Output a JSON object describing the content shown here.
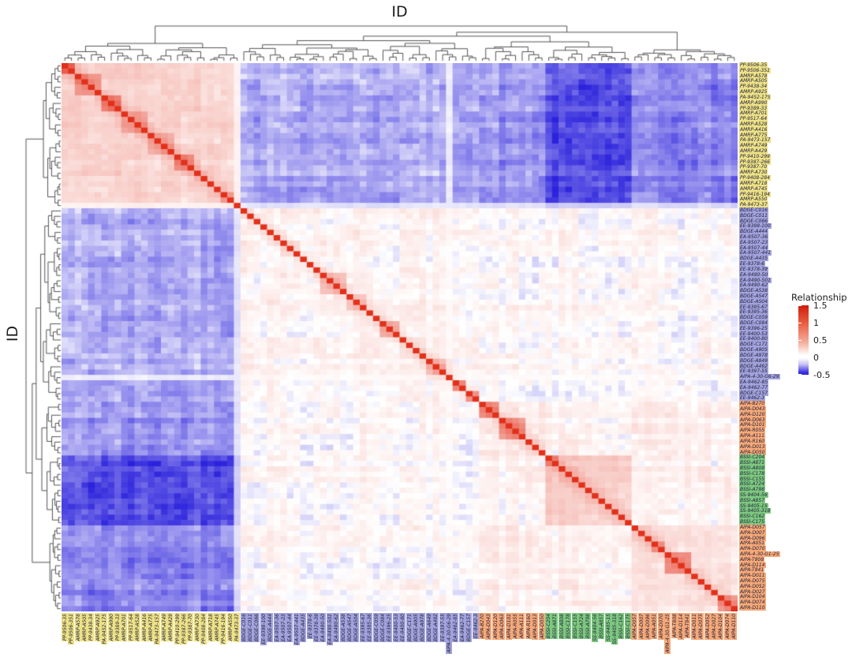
{
  "titles": {
    "top": "ID",
    "left": "ID"
  },
  "legend": {
    "title": "Relationship",
    "ticks": [
      "1.5",
      "1",
      "0.5",
      "0",
      "-0.5"
    ],
    "tick_values": [
      1.5,
      1,
      0.5,
      0,
      -0.5
    ],
    "vmax": 1.5,
    "vmin": -0.5
  },
  "palette": {
    "pos_max": "#e2301a",
    "mid": "#ffffff",
    "neg_max": "#2c22dc"
  },
  "chart_data": {
    "type": "heatmap",
    "symmetric": true,
    "value_label": "Relationship",
    "diagonal_value": 1.5,
    "groups": [
      {
        "name": "amrp-pp-cluster",
        "color": "#ede186",
        "labels": [
          "PP-9506-35",
          "PP-9506-351",
          "AMRP-A578",
          "AMRP-A505",
          "PP-9438-34",
          "AMRP-A925",
          "PA-9452-175",
          "AMRP-A990",
          "PP-9389-33",
          "AMRP-A701",
          "PP-9517-64",
          "AMRP-A528",
          "AMRP-A416",
          "AMRP-A775",
          "PA-9473-157",
          "AMRP-A749",
          "AMRP-A429",
          "PP-9410-299",
          "PP-9387-266",
          "PP-9387-70",
          "AMRP-A730",
          "PP-9408-284",
          "AMRP-A718",
          "AMRP-A745",
          "PP-9416-194",
          "AMRP-A550",
          "PA-9473-37"
        ]
      },
      {
        "name": "bdge-ea-ee-cluster",
        "color": "#a2a2dc",
        "labels": [
          "BDGE-C016",
          "BDGE-C011",
          "BDGE-C066",
          "EE-9398-100",
          "BDGE-A444",
          "EA-9507-36",
          "EA-9507-23",
          "EA-9507-44",
          "EA-9507-441",
          "BDGE-A435",
          "EE-9378-6",
          "EE-9378-39",
          "EA-9490-50",
          "EA-9490-501",
          "EA-9490-62",
          "BDGE-A538",
          "BDGE-A547",
          "BDGE-A504",
          "EE-9395-67",
          "EE-9395-36",
          "BDGE-C059",
          "BDGE-C084",
          "EE-9396-25",
          "EE-9400-53",
          "EE-9400-80",
          "BDGE-C171",
          "BDGE-A905",
          "BDGE-A978",
          "BDGE-A849",
          "BDGE-A492",
          "EE-9397-55",
          "AIPA-4-30-G6-29",
          "EA-9462-85",
          "EA-9462-77",
          "BDGE-C157",
          "EE-9462-3"
        ]
      },
      {
        "name": "aipa-cluster-1",
        "color": "#f5a877",
        "labels": [
          "AIPA-B270",
          "AIPA-D043",
          "AIPA-D120",
          "AIPA-D063",
          "AIPA-D101",
          "AIPA-R055",
          "AIPA-A111",
          "AIPA-R160",
          "AIPA-D013",
          "AIPA-D050"
        ]
      },
      {
        "name": "bssi-ss-cluster",
        "color": "#7dc87e",
        "labels": [
          "BSSI-C204",
          "BSSI-A871",
          "BSSI-A808",
          "BSSI-C178",
          "BSSI-C155",
          "BSSI-A724",
          "BSSI-A798",
          "SS-9404-56",
          "BSSI-A857",
          "SS-9405-15",
          "SS-9405-318",
          "BSSI-C162",
          "BSSI-C175"
        ]
      },
      {
        "name": "aipa-cluster-2",
        "color": "#f5a877",
        "labels": [
          "AIPA-D057",
          "AIPA-D007",
          "AIPA-D096",
          "AIPA-A051",
          "AIPA-D070",
          "AIPA-4-30-G1-25",
          "AIPA-T808",
          "AIPA-D114",
          "AIPA-T841",
          "AIPA-D011",
          "AIPA-D075",
          "AIPA-D052",
          "AIPA-D027",
          "AIPA-D104",
          "AIPA-D074",
          "AIPA-D110"
        ]
      }
    ],
    "block_means": [
      [
        0.28,
        -0.2,
        -0.26,
        -0.44,
        -0.3
      ],
      [
        -0.2,
        0.07,
        0.02,
        0.02,
        0.03
      ],
      [
        -0.26,
        0.02,
        0.12,
        0.05,
        0.08
      ],
      [
        -0.44,
        0.02,
        0.05,
        0.3,
        0.06
      ],
      [
        -0.3,
        0.03,
        0.08,
        0.06,
        0.16
      ]
    ],
    "weak_samples": [
      "PA-9473-37",
      "AIPA-4-30-G6-29"
    ]
  }
}
